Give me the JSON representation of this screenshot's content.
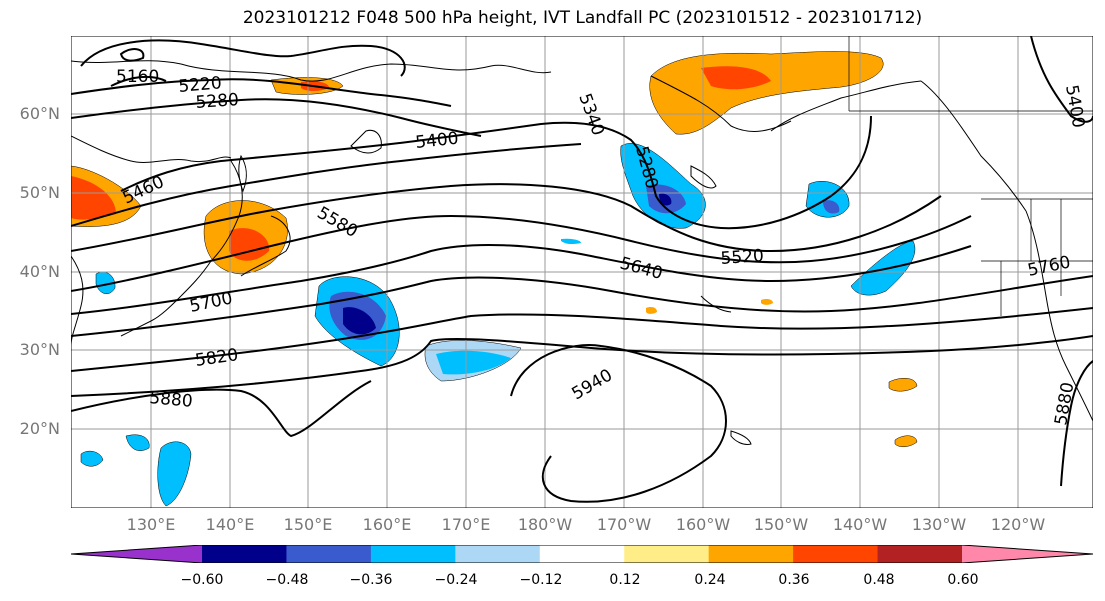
{
  "title": "2023101212 F048 500 hPa height, IVT Landfall PC (2023101512 - 2023101712)",
  "lat_labels": [
    "60°N",
    "50°N",
    "40°N",
    "30°N",
    "20°N"
  ],
  "lon_labels": [
    "130°E",
    "140°E",
    "150°E",
    "160°E",
    "170°E",
    "180°W",
    "170°W",
    "160°W",
    "150°W",
    "140°W",
    "130°W",
    "120°W"
  ],
  "contour_labels": [
    "5160",
    "5220",
    "5280",
    "5340",
    "5400",
    "5460",
    "5520",
    "5580",
    "5640",
    "5700",
    "5760",
    "5820",
    "5880",
    "5940",
    "5880",
    "5280",
    "5400"
  ],
  "colorbar": {
    "ticks": [
      "−0.60",
      "−0.48",
      "−0.36",
      "−0.24",
      "−0.12",
      "0.12",
      "0.24",
      "0.36",
      "0.48",
      "0.60"
    ],
    "colors": [
      "#9932cc",
      "#00008b",
      "#3a5bcd",
      "#00bfff",
      "#add8f5",
      "#ffffff",
      "#ffee88",
      "#ffa500",
      "#ff4500",
      "#b22222",
      "#ff88aa"
    ]
  }
}
